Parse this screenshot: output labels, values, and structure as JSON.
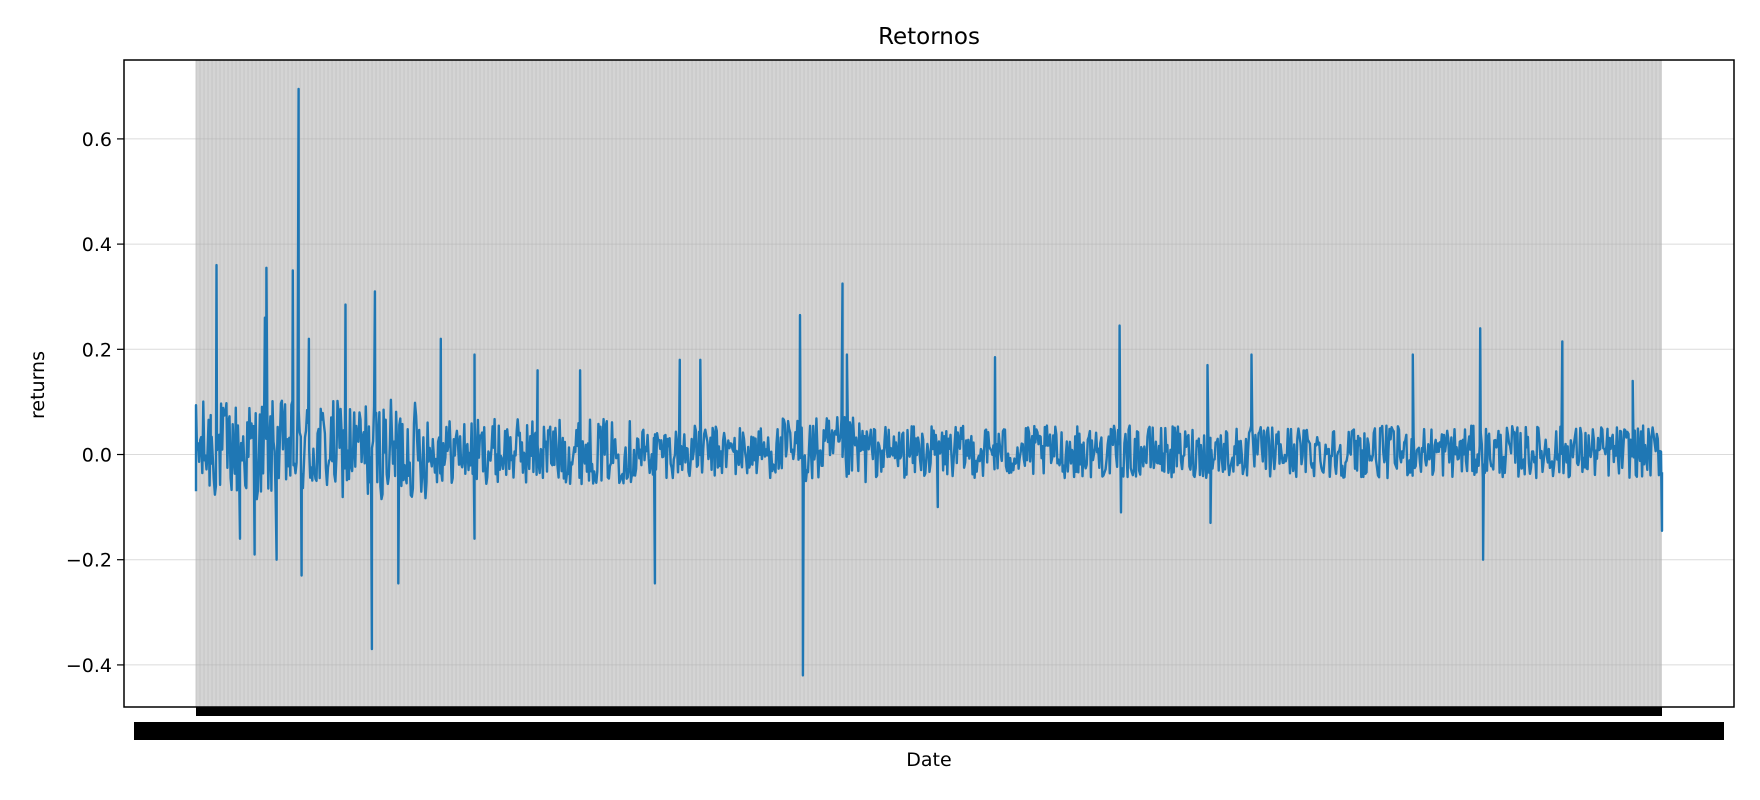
{
  "chart_data": {
    "type": "line",
    "title": "Retornos",
    "xlabel": "Date",
    "ylabel": "returns",
    "ylim": [
      -0.48,
      0.75
    ],
    "yticks": [
      -0.4,
      -0.2,
      0.0,
      0.2,
      0.4,
      0.6
    ],
    "ytick_labels": [
      "−0.4",
      "−0.2",
      "0.0",
      "0.2",
      "0.4",
      "0.6"
    ],
    "grid": true,
    "x_ticks_note": "dense overlapping date tick labels (illegible)",
    "series": [
      {
        "color": "#1f77b4",
        "x_range": [
          0,
          1
        ],
        "peaks": [
          [
            0.0,
            -0.07
          ],
          [
            0.01,
            0.075
          ],
          [
            0.014,
            0.36
          ],
          [
            0.03,
            -0.16
          ],
          [
            0.04,
            -0.19
          ],
          [
            0.047,
            0.26
          ],
          [
            0.048,
            0.355
          ],
          [
            0.055,
            -0.2
          ],
          [
            0.066,
            0.35
          ],
          [
            0.07,
            0.695
          ],
          [
            0.072,
            -0.23
          ],
          [
            0.077,
            0.22
          ],
          [
            0.102,
            0.285
          ],
          [
            0.12,
            -0.37
          ],
          [
            0.122,
            0.31
          ],
          [
            0.138,
            -0.245
          ],
          [
            0.167,
            0.22
          ],
          [
            0.19,
            -0.16
          ],
          [
            0.19,
            0.19
          ],
          [
            0.233,
            0.16
          ],
          [
            0.262,
            0.16
          ],
          [
            0.313,
            -0.245
          ],
          [
            0.33,
            0.18
          ],
          [
            0.344,
            0.18
          ],
          [
            0.412,
            0.265
          ],
          [
            0.414,
            -0.42
          ],
          [
            0.441,
            0.325
          ],
          [
            0.444,
            0.19
          ],
          [
            0.506,
            -0.1
          ],
          [
            0.545,
            0.185
          ],
          [
            0.63,
            0.245
          ],
          [
            0.631,
            -0.11
          ],
          [
            0.69,
            0.17
          ],
          [
            0.692,
            -0.13
          ],
          [
            0.72,
            0.19
          ],
          [
            0.83,
            0.19
          ],
          [
            0.876,
            0.24
          ],
          [
            0.878,
            -0.2
          ],
          [
            0.932,
            0.215
          ],
          [
            0.98,
            0.14
          ],
          [
            1.0,
            -0.145
          ]
        ],
        "baseline_noise_amplitude": 0.05
      }
    ]
  }
}
